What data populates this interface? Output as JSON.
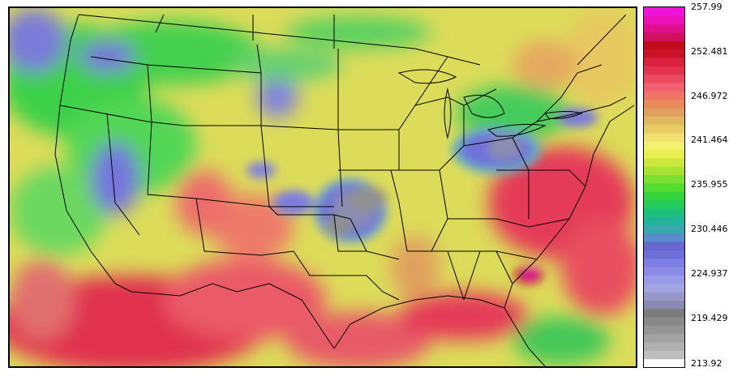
{
  "colorbar": {
    "labels": [
      "257.99",
      "252.481",
      "246.972",
      "241.464",
      "235.955",
      "230.446",
      "224.937",
      "219.429",
      "213.92"
    ],
    "colors": [
      "#ffffff",
      "#bebebe",
      "#b0b0b0",
      "#a2a2a2",
      "#949494",
      "#888888",
      "#7c7c7c",
      "#8a8ab4",
      "#9898c8",
      "#a4a4e0",
      "#9a9aea",
      "#8c8ce8",
      "#7e7ee4",
      "#6e6ed8",
      "#6666cc",
      "#5a8ccc",
      "#3aa8b0",
      "#22b49a",
      "#1ec07c",
      "#24cc5c",
      "#34d43c",
      "#52dc30",
      "#7ce030",
      "#a6e234",
      "#cce83c",
      "#e6f050",
      "#f4f070",
      "#f0e070",
      "#e8cc66",
      "#e0b860",
      "#e0a05e",
      "#e88a5a",
      "#ee7468",
      "#f06070",
      "#ec4a60",
      "#e43250",
      "#dc2040",
      "#cc1228",
      "#c20c1c",
      "#d01060",
      "#e0108c",
      "#ec10b8",
      "#f014d8"
    ]
  },
  "map": {
    "background": "#dcdc5a"
  }
}
